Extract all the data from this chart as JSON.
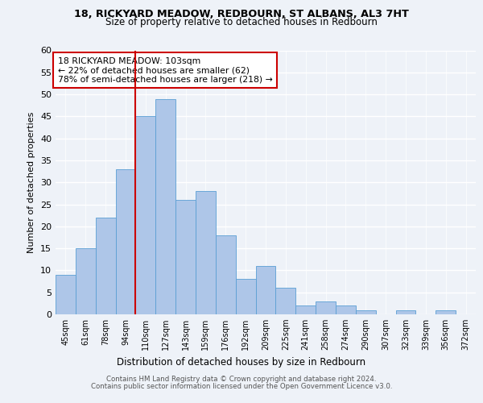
{
  "title_line1": "18, RICKYARD MEADOW, REDBOURN, ST ALBANS, AL3 7HT",
  "title_line2": "Size of property relative to detached houses in Redbourn",
  "xlabel": "Distribution of detached houses by size in Redbourn",
  "ylabel": "Number of detached properties",
  "bar_labels": [
    "45sqm",
    "61sqm",
    "78sqm",
    "94sqm",
    "110sqm",
    "127sqm",
    "143sqm",
    "159sqm",
    "176sqm",
    "192sqm",
    "209sqm",
    "225sqm",
    "241sqm",
    "258sqm",
    "274sqm",
    "290sqm",
    "307sqm",
    "323sqm",
    "339sqm",
    "356sqm",
    "372sqm"
  ],
  "bar_values": [
    9,
    15,
    22,
    33,
    45,
    49,
    26,
    28,
    18,
    8,
    11,
    6,
    2,
    3,
    2,
    1,
    0,
    1,
    0,
    1,
    0
  ],
  "bar_color": "#aec6e8",
  "bar_edgecolor": "#5a9fd4",
  "vline_color": "#cc0000",
  "annotation_text": "18 RICKYARD MEADOW: 103sqm\n← 22% of detached houses are smaller (62)\n78% of semi-detached houses are larger (218) →",
  "annotation_box_edgecolor": "#cc0000",
  "ylim": [
    0,
    60
  ],
  "yticks": [
    0,
    5,
    10,
    15,
    20,
    25,
    30,
    35,
    40,
    45,
    50,
    55,
    60
  ],
  "footer_line1": "Contains HM Land Registry data © Crown copyright and database right 2024.",
  "footer_line2": "Contains public sector information licensed under the Open Government Licence v3.0.",
  "background_color": "#eef2f8",
  "plot_bg_color": "#eef2f8"
}
